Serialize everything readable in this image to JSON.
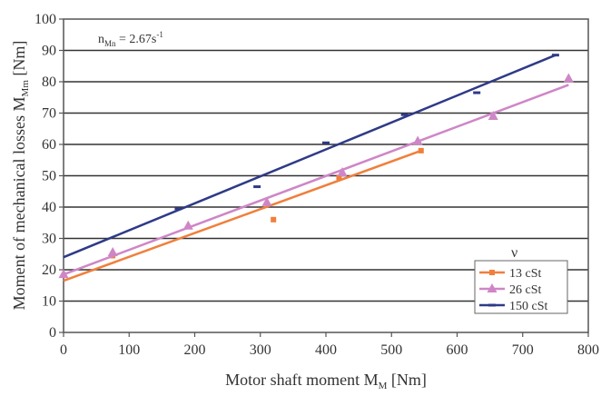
{
  "chart_data": {
    "type": "scatter",
    "title": "",
    "annotation": {
      "main": "n",
      "sub": "Mn",
      "rest": " = 2.67s",
      "sup": "-1"
    },
    "xlabel": {
      "main": "Motor shaft moment M",
      "sub": "M",
      "rest": " [Nm]"
    },
    "ylabel": {
      "main": "Moment of mechanical losses M",
      "sub": "Mm",
      "rest": " [Nm]"
    },
    "xlim": [
      0,
      800
    ],
    "ylim": [
      0,
      100
    ],
    "xticks": [
      "0",
      "100",
      "200",
      "300",
      "400",
      "500",
      "600",
      "700",
      "800"
    ],
    "yticks": [
      "0",
      "10",
      "20",
      "30",
      "40",
      "50",
      "60",
      "70",
      "80",
      "90",
      "100"
    ],
    "grid": "horizontal",
    "legend_title": "ν",
    "legend_position": "lower-right",
    "series": [
      {
        "name": "13 cSt",
        "color": "#f07f3c",
        "marker": "square",
        "points": [
          [
            75,
            24.5
          ],
          [
            320,
            36
          ],
          [
            420,
            49.5
          ],
          [
            545,
            58
          ]
        ],
        "fit": [
          [
            0,
            16.5
          ],
          [
            545,
            58
          ]
        ]
      },
      {
        "name": "26 cSt",
        "color": "#cf86c6",
        "marker": "triangle",
        "points": [
          [
            0,
            18.5
          ],
          [
            75,
            25.5
          ],
          [
            190,
            34
          ],
          [
            310,
            41.5
          ],
          [
            425,
            51
          ],
          [
            540,
            61
          ],
          [
            655,
            69
          ],
          [
            770,
            81
          ]
        ],
        "fit": [
          [
            0,
            18.5
          ],
          [
            770,
            79
          ]
        ]
      },
      {
        "name": "150 cSt",
        "color": "#2e3a87",
        "marker": "dash",
        "points": [
          [
            175,
            39.5
          ],
          [
            295,
            46.5
          ],
          [
            400,
            60.5
          ],
          [
            520,
            69.5
          ],
          [
            630,
            76.5
          ],
          [
            750,
            88.5
          ]
        ],
        "fit": [
          [
            0,
            24
          ],
          [
            750,
            88.5
          ]
        ]
      }
    ]
  }
}
